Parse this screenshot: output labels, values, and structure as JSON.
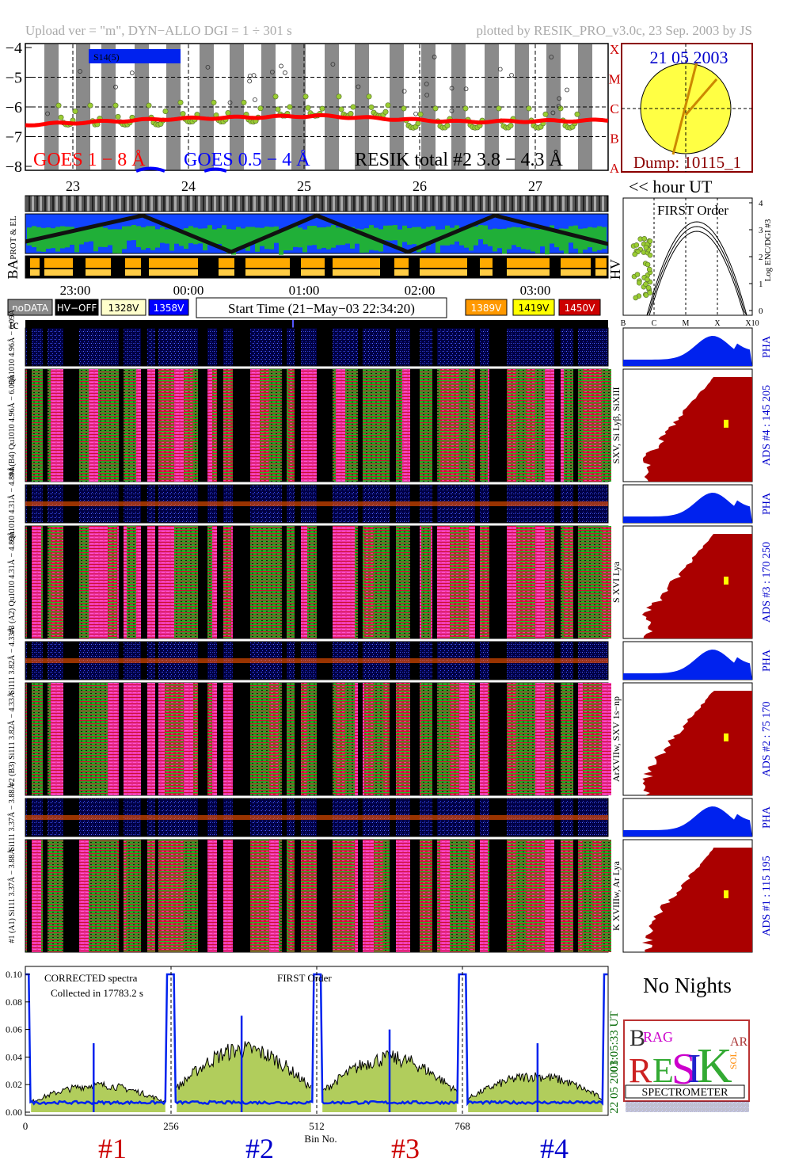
{
  "header": {
    "upload": "Upload ver = \"m\", DYN−ALLO DGI =   1 ÷ 301 s",
    "plotted": "plotted by RESIK_PRO_v3.0c, 23 Sep. 2003 by JS"
  },
  "goes": {
    "ytick_labels": [
      "−4",
      "−5",
      "−6",
      "−7",
      "−8"
    ],
    "class_labels": [
      "X",
      "M",
      "C",
      "B",
      "A"
    ],
    "legend_goes18": "GOES 1 − 8 Å",
    "legend_goes054": "GOES 0.5 − 4 Å",
    "legend_resik": "RESIK total #2  3.8 − 4.3 Å",
    "box_label": "S14(5)",
    "day_labels": [
      "23",
      "24",
      "25",
      "26",
      "27"
    ],
    "colors": {
      "goes18": "#ff0000",
      "goes054": "#0000ff",
      "resik": "#9acd32",
      "shade": "#888888"
    }
  },
  "sun": {
    "date": "21 05 2003",
    "dump": "Dump: 10115_1",
    "colors": {
      "disk": "#ffff44",
      "frame": "#8b0000",
      "date": "#0000cc"
    }
  },
  "hour_ut_label": "<< hour UT",
  "env_panels": {
    "labels": [
      "PROT & EL",
      "BA",
      "HV"
    ],
    "time_labels": [
      "23:00",
      "00:00",
      "01:00",
      "02:00",
      "03:00"
    ]
  },
  "hv_legend": {
    "items": [
      {
        "label": "noDATA",
        "color": "#888888",
        "text_color": "#ffffff"
      },
      {
        "label": "HV−OFF",
        "color": "#000000",
        "text_color": "#ffffff"
      },
      {
        "label": "1328V",
        "color": "#ffffcc",
        "text_color": "#000000"
      },
      {
        "label": "1358V",
        "color": "#0000ff",
        "text_color": "#ffffff"
      },
      {
        "label": "1389V",
        "color": "#ff9900",
        "text_color": "#ffffff"
      },
      {
        "label": "1419V",
        "color": "#ffff00",
        "text_color": "#000000"
      },
      {
        "label": "1450V",
        "color": "#cc0000",
        "text_color": "#ffffff"
      }
    ],
    "start_time": "Start Time (21−May−03 22:34:20)"
  },
  "first_order": {
    "title": "FIRST Order",
    "ylabel": "Log ENC/DGI #3",
    "ytick_labels": [
      "0",
      "1",
      "2",
      "3",
      "4"
    ],
    "xtick_labels": [
      "B",
      "C",
      "M",
      "X",
      "X10"
    ]
  },
  "tc_label": "tc",
  "channels": [
    {
      "pha_label": "Qu1010 4.96Å − 6.09Å",
      "main_label": "#4 (B4) Qu1010 4.96Å − 6.09Å",
      "lines": "SXV, Si Lyβ, SiXIII",
      "ads": "ADS #4 :   145 205",
      "pha": "PHA"
    },
    {
      "pha_label": "Qu1010 4.31Å − 4.89Å",
      "main_label": "#3 (A2) Qu1010 4.31Å − 4.89Å",
      "lines": "S XVI Lya",
      "ads": "ADS #3 :   170 250",
      "pha": "PHA"
    },
    {
      "pha_label": "Si111 3.82Å − 4.33Å",
      "main_label": "#2 (B3) Si111 3.82Å − 4.33Å",
      "lines": "ArXVIIw, SXV 1s−np",
      "ads": "ADS #2 :   75 170",
      "pha": "PHA"
    },
    {
      "pha_label": "Si111 3.37Å − 3.88Å",
      "main_label": "#1 (A1) Si111 3.37Å − 3.88Å",
      "lines": "K XVIIIw, Ar Lya",
      "ads": "ADS #1 :   115 195",
      "pha": "PHA"
    }
  ],
  "spectra": {
    "title_corrected": "CORRECTED spectra",
    "collected": "Collected in 17783.2 s",
    "title_first": "FIRST Order",
    "ytick_labels": [
      "0.00",
      "0.02",
      "0.04",
      "0.06",
      "0.08",
      "0.10"
    ],
    "xtick_labels": [
      "0",
      "256",
      "512",
      "768"
    ],
    "xlabel": "Bin No.",
    "time_utc": "01:05:33 UT",
    "date": "22 05 2003",
    "channel_labels": [
      "#1",
      "#2",
      "#3",
      "#4"
    ],
    "channel_label_colors": [
      "#cc0000",
      "#0000cc",
      "#cc0000",
      "#0000cc"
    ]
  },
  "no_nights": "No Nights",
  "logo": {
    "letters": "BRAG RESIK SOLAR",
    "word": "SPECTROMETER"
  },
  "chart_data": [
    {
      "type": "line",
      "title": "",
      "ylabel": "",
      "ylim": [
        -8,
        -4
      ],
      "yticks": [
        -4,
        -5,
        -6,
        -7,
        -8
      ],
      "x": [
        "23",
        "24",
        "25",
        "26",
        "27"
      ],
      "series": [
        {
          "name": "GOES 1 − 8 Å",
          "values": [
            -6.6,
            -6.4,
            -6.3,
            -6.5,
            -6.45
          ]
        },
        {
          "name": "RESIK total #2  3.8 − 4.3 Å",
          "values": [
            -6.4,
            -6.3,
            -6.1,
            -6.5,
            -6.5
          ]
        }
      ]
    },
    {
      "type": "line",
      "title": "",
      "xlabel": "Bin No.",
      "xlim": [
        0,
        1024
      ],
      "ylim": [
        0,
        0.1
      ],
      "x": [
        0,
        256,
        512,
        768
      ],
      "series": [
        {
          "values": [
            0.015,
            0.035,
            0.03,
            0.02
          ]
        }
      ]
    }
  ]
}
